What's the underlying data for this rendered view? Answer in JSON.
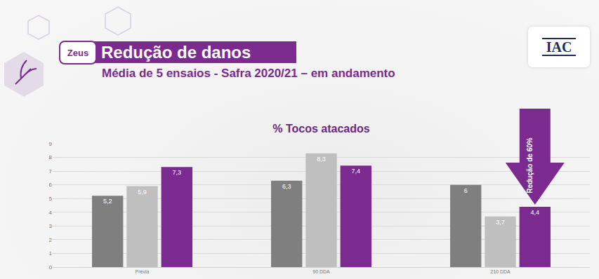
{
  "slide": {
    "badge": "Zeus",
    "heading": "Redução de danos",
    "subheading": "Média de 5 ensaios - Safra 2020/21 – em andamento",
    "logo": "IAC"
  },
  "chart_data": {
    "type": "bar",
    "title": "% Tocos atacados",
    "categories": [
      "Prévia",
      "90 DDA",
      "210 DDA"
    ],
    "series": [
      {
        "color": "#7f7f7f",
        "values": [
          5.2,
          6.3,
          6
        ],
        "value_labels": [
          "5,2",
          "6,3",
          "6"
        ]
      },
      {
        "color": "#bfbfbf",
        "values": [
          5.9,
          8.3,
          3.7
        ],
        "value_labels": [
          "5,9",
          "8,3",
          "3,7"
        ]
      },
      {
        "color": "#7b2a8f",
        "values": [
          7.3,
          7.4,
          4.4
        ],
        "value_labels": [
          "7,3",
          "7,4",
          "4,4"
        ]
      }
    ],
    "ylim": [
      0,
      9
    ],
    "yticks": [
      0,
      1,
      2,
      3,
      4,
      5,
      6,
      7,
      8,
      9
    ],
    "grid": true,
    "data_labels": true,
    "annotations": [
      {
        "text": "Redução de 60%",
        "category": "210 DDA"
      }
    ]
  }
}
